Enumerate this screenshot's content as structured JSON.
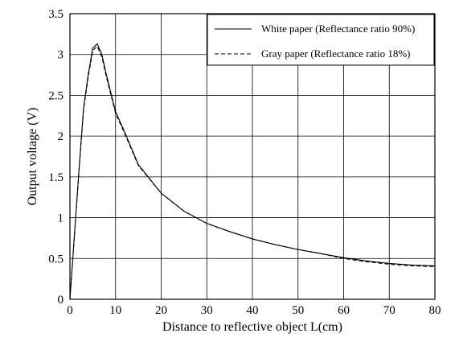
{
  "chart_data": {
    "type": "line",
    "title": "",
    "xlabel": "Distance to reflective object L(cm)",
    "ylabel": "Output voltage (V)",
    "xlim": [
      0,
      80
    ],
    "ylim": [
      0,
      3.5
    ],
    "x_ticks": [
      "0",
      "10",
      "20",
      "30",
      "40",
      "50",
      "60",
      "70",
      "80"
    ],
    "y_ticks": [
      "0",
      "0.5",
      "1",
      "1.5",
      "2",
      "2.5",
      "3",
      "3.5"
    ],
    "grid": true,
    "legend_position": "top-right",
    "series": [
      {
        "name": "White paper (Reflectance ratio 90%)",
        "style": "solid",
        "x": [
          0,
          2,
          3,
          4,
          5,
          6,
          7,
          8,
          10,
          12,
          15,
          20,
          25,
          30,
          35,
          40,
          45,
          50,
          55,
          60,
          65,
          70,
          75,
          80
        ],
        "y": [
          0,
          1.6,
          2.35,
          2.75,
          3.08,
          3.13,
          3.0,
          2.75,
          2.3,
          2.05,
          1.65,
          1.3,
          1.08,
          0.93,
          0.83,
          0.74,
          0.67,
          0.61,
          0.56,
          0.51,
          0.47,
          0.44,
          0.42,
          0.41
        ]
      },
      {
        "name": "Gray paper (Reflectance ratio 18%)",
        "style": "dashed",
        "x": [
          0,
          2,
          3,
          4,
          5,
          6,
          7,
          8,
          10,
          12,
          15,
          20,
          25,
          30,
          35,
          40,
          45,
          50,
          55,
          60,
          65,
          70,
          75,
          80
        ],
        "y": [
          0,
          1.58,
          2.33,
          2.72,
          3.05,
          3.1,
          2.97,
          2.72,
          2.28,
          2.03,
          1.64,
          1.3,
          1.08,
          0.93,
          0.83,
          0.74,
          0.67,
          0.61,
          0.56,
          0.5,
          0.46,
          0.43,
          0.41,
          0.4
        ]
      }
    ]
  }
}
